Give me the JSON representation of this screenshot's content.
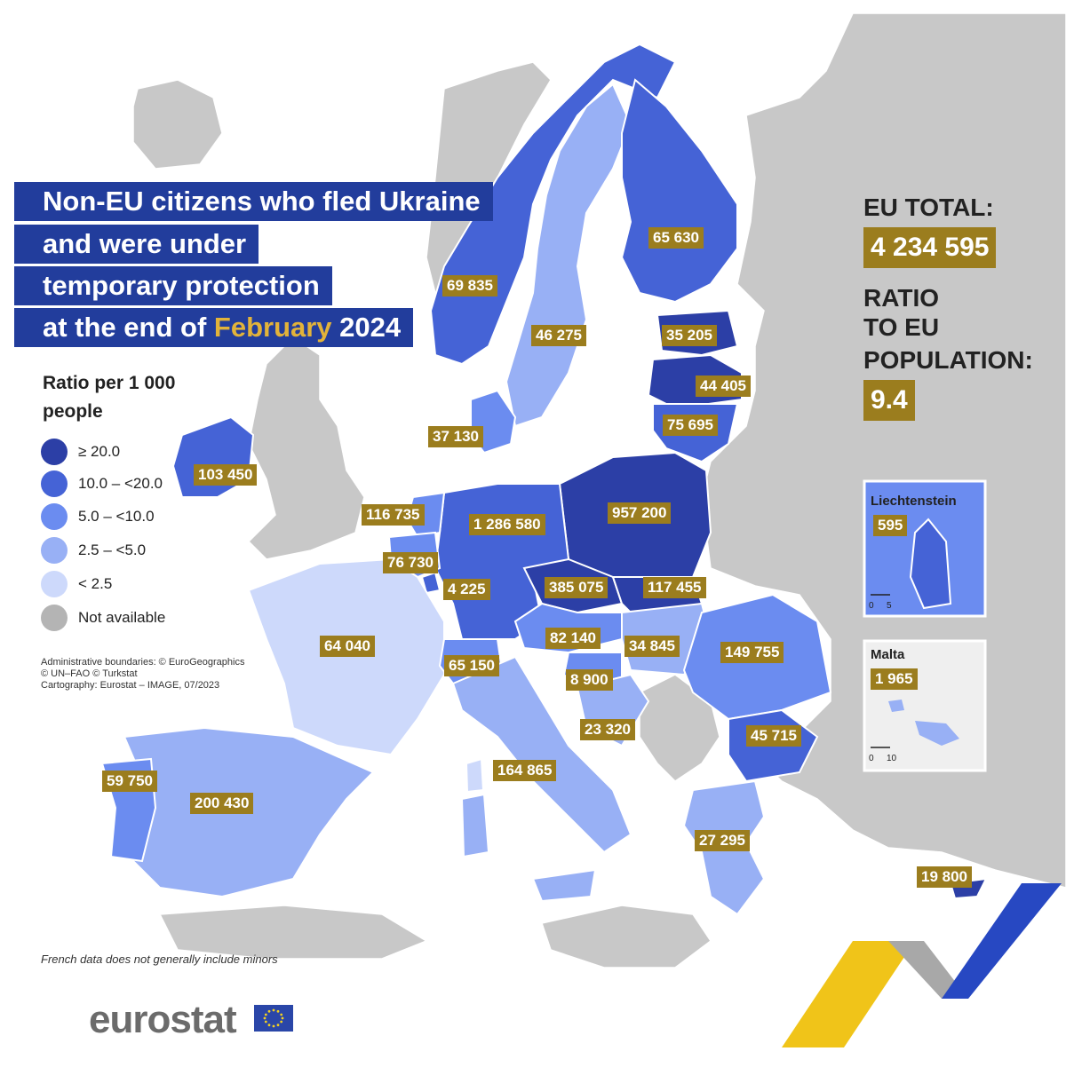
{
  "title": {
    "line1": "Non-EU citizens who fled Ukraine",
    "line2": "and were under",
    "line3": "temporary protection",
    "line4_prefix": "at the end of ",
    "line4_highlight": "February",
    "line4_suffix": " 2024"
  },
  "legend": {
    "title": "Ratio per 1 000 people",
    "items": [
      {
        "label": "≥ 20.0",
        "color": "#2c3fa6"
      },
      {
        "label": "10.0 – <20.0",
        "color": "#4563d6"
      },
      {
        "label": "5.0 – <10.0",
        "color": "#6b8cf0"
      },
      {
        "label": "2.5 – <5.0",
        "color": "#98b0f5"
      },
      {
        "label": "< 2.5",
        "color": "#cdd9fb"
      },
      {
        "label": "Not available",
        "color": "#b4b4b4"
      }
    ]
  },
  "credits": {
    "line1": "Administrative boundaries: © EuroGeographics",
    "line2": "© UN–FAO © Turkstat",
    "line3": "Cartography: Eurostat – IMAGE, 07/2023"
  },
  "footnote": "French data does not generally include minors",
  "summary": {
    "eu_total_label": "EU TOTAL:",
    "eu_total_value": "4 234 595",
    "ratio_label_1": "RATIO",
    "ratio_label_2": "TO EU",
    "ratio_label_3": "POPULATION:",
    "ratio_value": "9.4"
  },
  "countries": [
    {
      "id": "finland",
      "value": "65 630"
    },
    {
      "id": "norway",
      "value": "69 835"
    },
    {
      "id": "sweden",
      "value": "46 275"
    },
    {
      "id": "estonia",
      "value": "35 205"
    },
    {
      "id": "latvia",
      "value": "44 405"
    },
    {
      "id": "lithuania",
      "value": "75 695"
    },
    {
      "id": "denmark",
      "value": "37 130"
    },
    {
      "id": "ireland",
      "value": "103 450"
    },
    {
      "id": "netherlands",
      "value": "116 735"
    },
    {
      "id": "germany",
      "value": "1 286 580"
    },
    {
      "id": "poland",
      "value": "957 200"
    },
    {
      "id": "belgium",
      "value": "76 730"
    },
    {
      "id": "luxembourg",
      "value": "4 225"
    },
    {
      "id": "czechia",
      "value": "385 075"
    },
    {
      "id": "slovakia",
      "value": "117 455"
    },
    {
      "id": "france",
      "value": "64 040"
    },
    {
      "id": "austria",
      "value": "82 140"
    },
    {
      "id": "hungary",
      "value": "34 845"
    },
    {
      "id": "romania",
      "value": "149 755"
    },
    {
      "id": "switzerland",
      "value": "65 150"
    },
    {
      "id": "slovenia",
      "value": "8 900"
    },
    {
      "id": "croatia",
      "value": "23 320"
    },
    {
      "id": "bulgaria",
      "value": "45 715"
    },
    {
      "id": "portugal",
      "value": "59 750"
    },
    {
      "id": "spain",
      "value": "200 430"
    },
    {
      "id": "italy",
      "value": "164 865"
    },
    {
      "id": "greece",
      "value": "27 295"
    },
    {
      "id": "cyprus",
      "value": "19 800"
    }
  ],
  "insets": {
    "liechtenstein": {
      "title": "Liechtenstein",
      "value": "595",
      "scale_0": "0",
      "scale_max": "5"
    },
    "malta": {
      "title": "Malta",
      "value": "1 965",
      "scale_0": "0",
      "scale_max": "10"
    }
  },
  "logo": {
    "text": "eurostat"
  }
}
